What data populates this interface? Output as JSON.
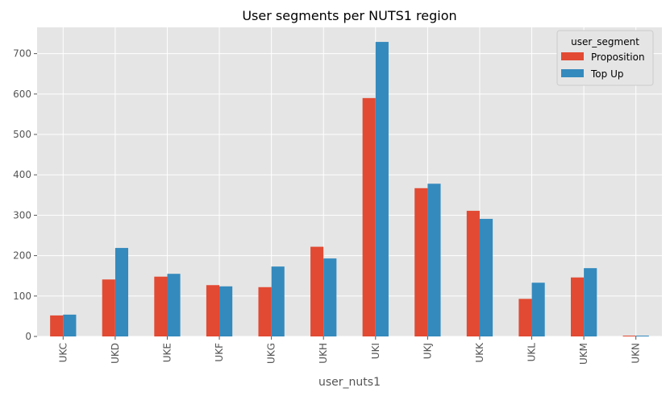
{
  "chart_data": {
    "type": "bar",
    "title": "User segments per NUTS1 region",
    "xlabel": "user_nuts1",
    "ylabel": "",
    "categories": [
      "UKC",
      "UKD",
      "UKE",
      "UKF",
      "UKG",
      "UKH",
      "UKI",
      "UKJ",
      "UKK",
      "UKL",
      "UKM",
      "UKN"
    ],
    "series": [
      {
        "name": "Proposition",
        "color": "#E24A33",
        "values": [
          52,
          141,
          148,
          127,
          122,
          222,
          590,
          367,
          311,
          93,
          146,
          2
        ]
      },
      {
        "name": "Top Up",
        "color": "#348ABD",
        "values": [
          54,
          219,
          155,
          124,
          173,
          193,
          729,
          378,
          291,
          133,
          169,
          2
        ]
      }
    ],
    "ylim": [
      0,
      765
    ],
    "yticks": [
      0,
      100,
      200,
      300,
      400,
      500,
      600,
      700
    ],
    "grid": true,
    "legend": {
      "title": "user_segment",
      "placement": "top-right"
    },
    "colors": {
      "plot_background": "#E5E5E5",
      "grid": "#FFFFFF"
    }
  }
}
